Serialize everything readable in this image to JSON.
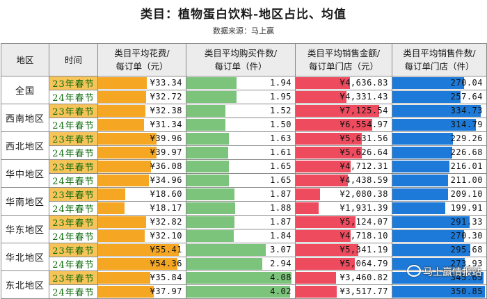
{
  "title": "类目：植物蛋白饮料-地区占比、均值",
  "source": "数据来源：马上赢",
  "columns": [
    {
      "name": "地区"
    },
    {
      "name": "时间"
    },
    {
      "line1": "类目平均花费/",
      "line2": "每订单（元）"
    },
    {
      "line1": "类目平均购买件数/",
      "line2": "每订单（件）"
    },
    {
      "line1": "类目平均销售金额/",
      "line2": "每订单门店（元）"
    },
    {
      "line1": "类目平均销售件数/",
      "line2": "每订单门店（件）"
    }
  ],
  "colors": {
    "spend": "#f5a623",
    "qty": "#7cc47c",
    "sales": "#ee4b5e",
    "units": "#1e7ad8"
  },
  "scales": {
    "spend": [
      0,
      60
    ],
    "qty": [
      0,
      4.2
    ],
    "sales": [
      0,
      8200
    ],
    "units": [
      0,
      355
    ]
  },
  "rows": [
    {
      "region": "全国",
      "periods": [
        {
          "label": "23年春节",
          "spend": "¥33.34",
          "qty": "1.94",
          "sales": "¥4,636.83",
          "units": "270.04"
        },
        {
          "label": "24年春节",
          "spend": "¥32.72",
          "qty": "1.95",
          "sales": "¥4,331.43",
          "units": "257.64"
        }
      ]
    },
    {
      "region": "西南地区",
      "periods": [
        {
          "label": "23年春节",
          "spend": "¥32.38",
          "qty": "1.52",
          "sales": "¥7,125.54",
          "units": "334.73"
        },
        {
          "label": "24年春节",
          "spend": "¥31.34",
          "qty": "1.50",
          "sales": "¥6,554.97",
          "units": "314.79"
        }
      ]
    },
    {
      "region": "西北地区",
      "periods": [
        {
          "label": "23年春节",
          "spend": "¥39.96",
          "qty": "1.63",
          "sales": "¥5,631.56",
          "units": "229.26"
        },
        {
          "label": "24年春节",
          "spend": "¥39.97",
          "qty": "1.61",
          "sales": "¥5,626.64",
          "units": "226.68"
        }
      ]
    },
    {
      "region": "华中地区",
      "periods": [
        {
          "label": "23年春节",
          "spend": "¥36.08",
          "qty": "1.65",
          "sales": "¥4,712.31",
          "units": "216.01"
        },
        {
          "label": "24年春节",
          "spend": "¥34.96",
          "qty": "1.65",
          "sales": "¥4,438.59",
          "units": "211.00"
        }
      ]
    },
    {
      "region": "华南地区",
      "periods": [
        {
          "label": "23年春节",
          "spend": "¥18.60",
          "qty": "1.87",
          "sales": "¥2,080.38",
          "units": "209.10"
        },
        {
          "label": "24年春节",
          "spend": "¥18.17",
          "qty": "1.88",
          "sales": "¥1,931.39",
          "units": "199.91"
        }
      ]
    },
    {
      "region": "华东地区",
      "periods": [
        {
          "label": "23年春节",
          "spend": "¥32.82",
          "qty": "1.87",
          "sales": "¥5,124.07",
          "units": "291.33"
        },
        {
          "label": "24年春节",
          "spend": "¥32.10",
          "qty": "1.84",
          "sales": "¥4,718.10",
          "units": "270.30"
        }
      ]
    },
    {
      "region": "华北地区",
      "periods": [
        {
          "label": "23年春节",
          "spend": "¥55.41",
          "qty": "3.07",
          "sales": "¥5,341.19",
          "units": "295.68"
        },
        {
          "label": "24年春节",
          "spend": "¥54.36",
          "qty": "2.94",
          "sales": "¥5,064.79",
          "units": "273.93"
        }
      ]
    },
    {
      "region": "东北地区",
      "periods": [
        {
          "label": "23年春节",
          "spend": "¥35.84",
          "qty": "4.08",
          "sales": "¥3,460.82",
          "units": "345.65"
        },
        {
          "label": "24年春节",
          "spend": "¥37.97",
          "qty": "4.02",
          "sales": "¥3,517.77",
          "units": "350.85"
        }
      ]
    }
  ],
  "watermark": "马上赢情报站"
}
